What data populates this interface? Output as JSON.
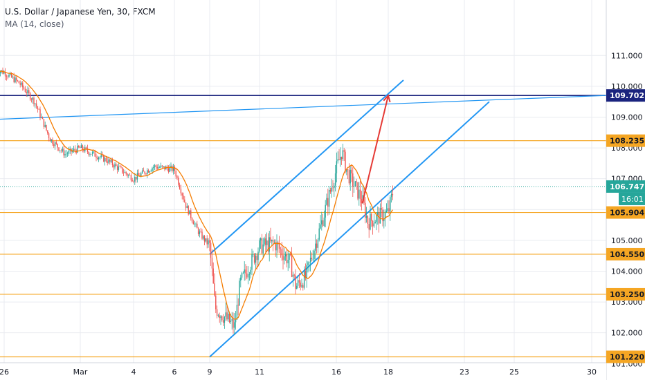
{
  "header": {
    "title": "U.S. Dollar / Japanese Yen, 30, FXCM",
    "indicator": "MA (14, close)"
  },
  "colors": {
    "background": "#ffffff",
    "grid": "#e9ebf0",
    "up_candle": "#26a69a",
    "down_candle": "#ef5350",
    "ma_line": "#f57c00",
    "horizontal_level": "#f5a623",
    "trend_line": "#2196f3",
    "resistance_line": "#1a237e",
    "arrow": "#e53935",
    "price_badge": "#26a69a"
  },
  "chart_data": {
    "type": "candlestick",
    "symbol": "USDJPY",
    "timeframe": "30",
    "x_tick_labels": [
      "26",
      "Mar",
      "4",
      "6",
      "9",
      "11",
      "16",
      "18",
      "23",
      "25",
      "30"
    ],
    "y_tick_labels": [
      "101.000",
      "102.000",
      "103.000",
      "104.000",
      "105.000",
      "106.000",
      "107.000",
      "108.000",
      "109.000",
      "110.000",
      "111.000"
    ],
    "ylim": [
      100.45,
      112.05
    ],
    "grid": true,
    "horizontal_levels": [
      {
        "value": 108.235,
        "label": "108.235"
      },
      {
        "value": 105.904,
        "label": "105.904"
      },
      {
        "value": 104.55,
        "label": "104.550"
      },
      {
        "value": 103.25,
        "label": "103.250"
      },
      {
        "value": 101.22,
        "label": "101.220"
      }
    ],
    "resistance_level": {
      "value": 109.702,
      "label": "109.702"
    },
    "current_price": {
      "value": 106.747,
      "label": "106.747",
      "countdown": "16:01"
    },
    "price_path": [
      {
        "date": "2020-02-25",
        "price": 110.55
      },
      {
        "date": "2020-02-26",
        "price": 110.45
      },
      {
        "date": "2020-02-27",
        "price": 110.1
      },
      {
        "date": "2020-02-28",
        "price": 109.5
      },
      {
        "date": "2020-02-29",
        "price": 108.3
      },
      {
        "date": "2020-03-01",
        "price": 107.8
      },
      {
        "date": "2020-03-02",
        "price": 108.0
      },
      {
        "date": "2020-03-03",
        "price": 107.6
      },
      {
        "date": "2020-03-04",
        "price": 107.0
      },
      {
        "date": "2020-03-05",
        "price": 107.4
      },
      {
        "date": "2020-03-06",
        "price": 107.3
      },
      {
        "date": "2020-03-07",
        "price": 106.1
      },
      {
        "date": "2020-03-08",
        "price": 105.3
      },
      {
        "date": "2020-03-09",
        "price": 104.8
      },
      {
        "date": "2020-03-09",
        "price": 102.8
      },
      {
        "date": "2020-03-10",
        "price": 102.2
      },
      {
        "date": "2020-03-10",
        "price": 103.6
      },
      {
        "date": "2020-03-11",
        "price": 104.8
      },
      {
        "date": "2020-03-12",
        "price": 104.9
      },
      {
        "date": "2020-03-13",
        "price": 104.3
      },
      {
        "date": "2020-03-13",
        "price": 103.5
      },
      {
        "date": "2020-03-14",
        "price": 103.8
      },
      {
        "date": "2020-03-15",
        "price": 105.5
      },
      {
        "date": "2020-03-16",
        "price": 107.3
      },
      {
        "date": "2020-03-16",
        "price": 107.9
      },
      {
        "date": "2020-03-16",
        "price": 107.2
      },
      {
        "date": "2020-03-17",
        "price": 106.3
      },
      {
        "date": "2020-03-17",
        "price": 105.6
      },
      {
        "date": "2020-03-18",
        "price": 105.9
      },
      {
        "date": "2020-03-18",
        "price": 106.7
      }
    ],
    "trend_lines": [
      {
        "name": "channel-upper",
        "from": {
          "date": "2020-03-09",
          "price": 104.55
        },
        "to": {
          "date": "2020-03-19",
          "price": 110.2
        }
      },
      {
        "name": "channel-lower",
        "from": {
          "date": "2020-03-09",
          "price": 101.22
        },
        "to": {
          "date": "2020-03-24",
          "price": 109.5
        }
      },
      {
        "name": "long-trendline",
        "from": {
          "date": "2020-02-20",
          "price": 108.88
        },
        "to": {
          "date": "2020-04-01",
          "price": 109.75
        }
      }
    ],
    "projection_arrow": {
      "from": {
        "date": "2020-03-17",
        "price": 106.2
      },
      "to": {
        "date": "2020-03-18",
        "price": 109.7
      }
    }
  }
}
